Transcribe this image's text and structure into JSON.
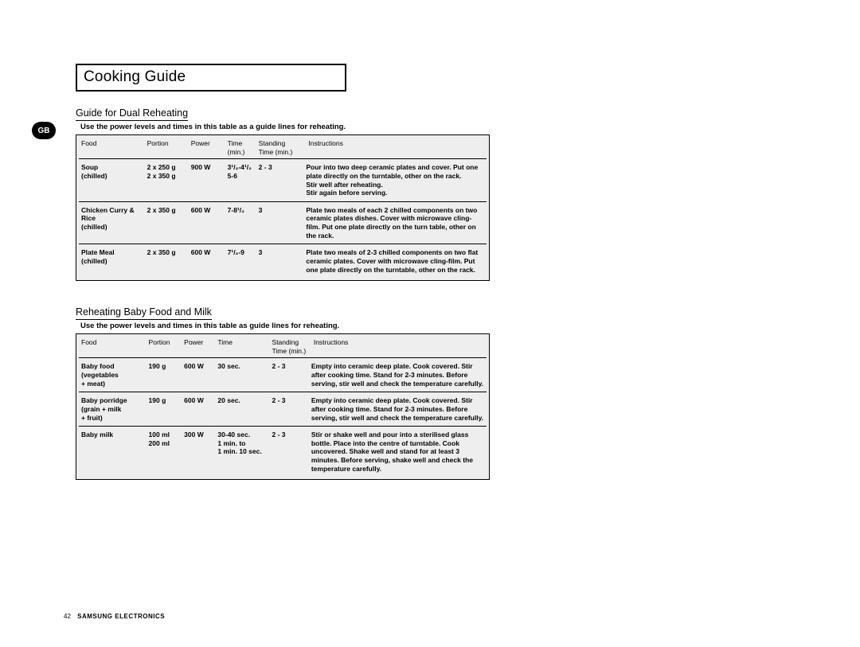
{
  "badge": "GB",
  "page_title": "Cooking Guide",
  "page_number": "42",
  "brand_footer": "SAMSUNG ELECTRONICS",
  "colors": {
    "page_bg": "#ffffff",
    "table_bg": "#eeeeee",
    "border": "#000000",
    "text": "#000000"
  },
  "section1": {
    "heading": "Guide for Dual Reheating",
    "note": "Use the power levels and times in this table as a guide lines for reheating.",
    "columns": {
      "food": "Food",
      "portion": "Portion",
      "power": "Power",
      "time": "Time\n(min.)",
      "standing": "Standing\nTime (min.)",
      "instructions": "Instructions"
    },
    "rows": [
      {
        "food": "Soup\n(chilled)",
        "portion": "2 x 250 g\n2 x 350 g",
        "power": "900 W",
        "time": "3¹/₂-4¹/₂\n5-6",
        "standing": "2 - 3",
        "instructions": "Pour into two deep ceramic plates and cover. Put one plate directly on the turntable, other on the rack.\nStir well after reheating.\nStir again before serving."
      },
      {
        "food": "Chicken Curry & Rice\n(chilled)",
        "portion": "2 x 350 g",
        "power": "600 W",
        "time": "7-8¹/₂",
        "standing": "3",
        "instructions": "Plate two meals of each 2 chilled components on two ceramic plates dishes. Cover with microwave cling-film. Put one plate directly on the turn table, other on the rack."
      },
      {
        "food": "Plate Meal\n(chilled)",
        "portion": "2 x 350 g",
        "power": "600 W",
        "time": "7¹/₂-9",
        "standing": "3",
        "instructions": "Plate two meals of 2-3 chilled components on two flat ceramic plates. Cover with microwave cling-film. Put one plate directly on the turntable, other on the rack."
      }
    ]
  },
  "section2": {
    "heading": "Reheating Baby Food and Milk",
    "note": "Use the power levels and times in this table as guide lines for reheating.",
    "columns": {
      "food": "Food",
      "portion": "Portion",
      "power": "Power",
      "time": "Time",
      "standing": "Standing\nTime (min.)",
      "instructions": "Instructions"
    },
    "rows": [
      {
        "food": "Baby food\n(vegetables\n + meat)",
        "portion": "190 g",
        "power": "600 W",
        "time": "30 sec.",
        "standing": "2 - 3",
        "instructions": "Empty into ceramic deep plate. Cook covered. Stir after cooking time. Stand for 2-3 minutes. Before serving, stir well and check the temperature carefully."
      },
      {
        "food": "Baby porridge\n(grain + milk\n + fruit)",
        "portion": "190 g",
        "power": "600 W",
        "time": "20 sec.",
        "standing": "2 - 3",
        "instructions": "Empty into ceramic deep plate. Cook covered. Stir after cooking time. Stand for 2-3 minutes. Before serving, stir well and check the temperature carefully."
      },
      {
        "food": "Baby milk",
        "portion": "100 ml\n200 ml",
        "power": "300 W",
        "time": "30-40 sec.\n1 min. to\n1 min. 10 sec.",
        "standing": "2 - 3",
        "instructions": "Stir or shake well and pour into a sterilised glass bottle. Place into the centre of turntable. Cook uncovered. Shake well and stand for at least 3 minutes. Before serving, shake well and check the temperature carefully."
      }
    ]
  }
}
